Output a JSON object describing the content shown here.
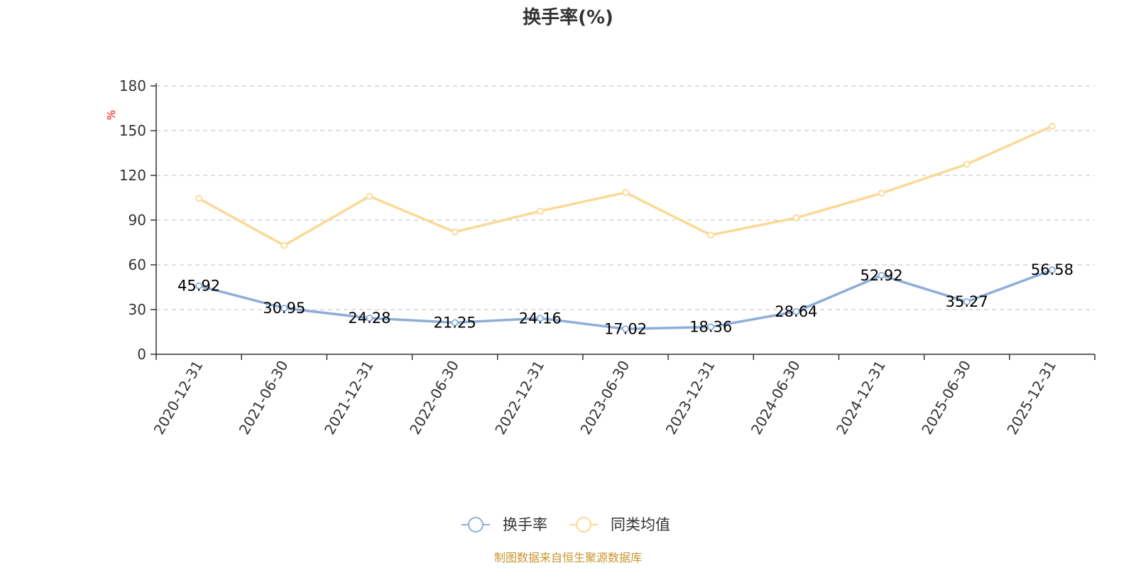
{
  "chart_data": {
    "type": "line",
    "title": "换手率(%)",
    "ylabel": "%",
    "ylim": [
      0,
      180
    ],
    "yticks": [
      0,
      30,
      60,
      90,
      120,
      150,
      180
    ],
    "grid": true,
    "legend_position": "bottom-center",
    "categories": [
      "2020-12-31",
      "2021-06-30",
      "2021-12-31",
      "2022-06-30",
      "2022-12-31",
      "2023-06-30",
      "2023-12-31",
      "2024-06-30",
      "2024-12-31",
      "2025-06-30",
      "2025-12-31"
    ],
    "series": [
      {
        "name": "换手率",
        "color": "#8eaed8",
        "show_labels": true,
        "values": [
          45.92,
          30.95,
          24.28,
          21.25,
          24.16,
          17.02,
          18.36,
          28.64,
          52.92,
          35.27,
          56.58
        ],
        "labels": [
          "45.92",
          "30.95",
          "24.28",
          "21.25",
          "24.16",
          "17.02",
          "18.36",
          "28.64",
          "52.92",
          "35.27",
          "56.58"
        ]
      },
      {
        "name": "同类均值",
        "color": "#fbd996",
        "show_labels": false,
        "values": [
          104.5,
          73.0,
          106.0,
          82.0,
          96.0,
          108.5,
          80.0,
          91.5,
          108.0,
          127.5,
          153.0
        ]
      }
    ]
  },
  "source_note": "制图数据来自恒生聚源数据库"
}
